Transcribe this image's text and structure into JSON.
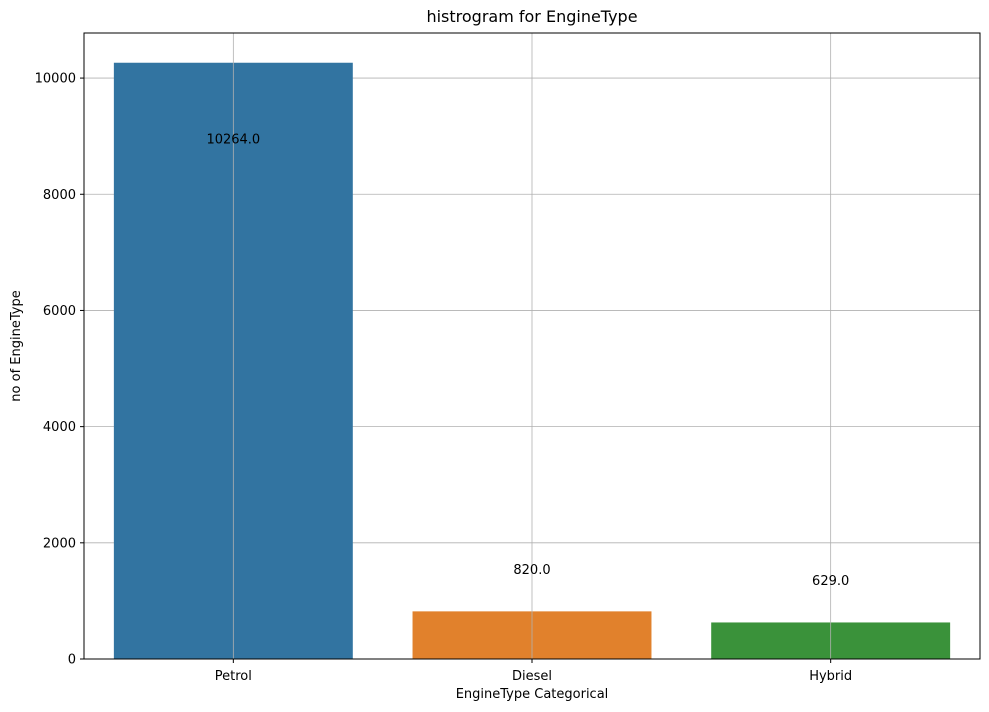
{
  "chart_data": {
    "type": "bar",
    "title": "histrogram for EngineType",
    "xlabel": "EngineType Categorical",
    "ylabel": "no of EngineType",
    "categories": [
      "Petrol",
      "Diesel",
      "Hybrid"
    ],
    "values": [
      10264,
      820,
      629
    ],
    "data_labels": [
      "10264.0",
      "820.0",
      "629.0"
    ],
    "colors": [
      "#3274a1",
      "#e1812c",
      "#3a923a"
    ],
    "ylim": [
      0,
      10776
    ],
    "yticks": [
      0,
      2000,
      4000,
      6000,
      8000,
      10000
    ],
    "grid": true,
    "legend": false
  }
}
